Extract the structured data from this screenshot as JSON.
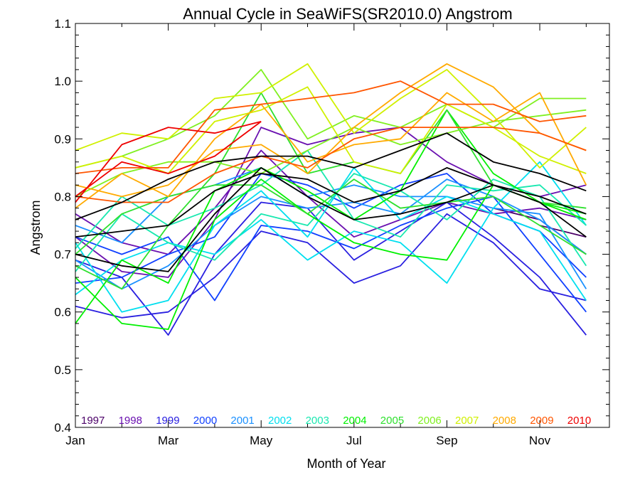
{
  "chart_data": {
    "type": "line",
    "title": "Annual Cycle in SeaWiFS(SR2010.0) Angstrom",
    "xlabel": "Month of Year",
    "ylabel": "Angstrom",
    "xlim": [
      1,
      12.5
    ],
    "ylim": [
      0.4,
      1.1
    ],
    "x": [
      1,
      2,
      3,
      4,
      5,
      6,
      7,
      8,
      9,
      10,
      11,
      12
    ],
    "x_ticks": [
      {
        "value": 1,
        "label": "Jan"
      },
      {
        "value": 3,
        "label": "Mar"
      },
      {
        "value": 5,
        "label": "May"
      },
      {
        "value": 7,
        "label": "Jul"
      },
      {
        "value": 9,
        "label": "Sep"
      },
      {
        "value": 11,
        "label": "Nov"
      }
    ],
    "y_ticks": [
      {
        "value": 0.4,
        "label": "0.4"
      },
      {
        "value": 0.5,
        "label": "0.5"
      },
      {
        "value": 0.6,
        "label": "0.6"
      },
      {
        "value": 0.7,
        "label": "0.7"
      },
      {
        "value": 0.8,
        "label": "0.8"
      },
      {
        "value": 0.9,
        "label": "0.9"
      },
      {
        "value": 1.0,
        "label": "1.0"
      },
      {
        "value": 1.1,
        "label": "1.1"
      }
    ],
    "legend_placement": "bottom inside plot",
    "series": [
      {
        "name": "1997",
        "color": "#4b0068",
        "values": [
          null,
          null,
          null,
          null,
          null,
          null,
          null,
          null,
          null,
          null,
          0.75,
          0.73
        ]
      },
      {
        "name": "1997",
        "color": "#4b0068",
        "values": [
          null,
          null,
          null,
          null,
          null,
          null,
          null,
          null,
          null,
          0.78,
          0.76,
          0.7
        ]
      },
      {
        "name": "1998",
        "color": "#6a10b0",
        "values": [
          0.77,
          0.72,
          0.7,
          0.78,
          0.88,
          0.8,
          0.73,
          0.76,
          0.79,
          0.77,
          0.78,
          0.76
        ]
      },
      {
        "name": "1998",
        "color": "#6a10b0",
        "values": [
          0.73,
          0.67,
          0.66,
          0.76,
          0.92,
          0.89,
          0.91,
          0.92,
          0.86,
          0.82,
          0.8,
          0.82
        ]
      },
      {
        "name": "1999",
        "color": "#2a20e0",
        "values": [
          0.69,
          0.66,
          0.56,
          0.7,
          0.79,
          0.78,
          0.69,
          0.74,
          0.79,
          0.73,
          0.66,
          0.56
        ]
      },
      {
        "name": "1999",
        "color": "#2a20e0",
        "values": [
          0.61,
          0.59,
          0.6,
          0.66,
          0.74,
          0.72,
          0.65,
          0.68,
          0.77,
          0.72,
          0.64,
          0.62
        ]
      },
      {
        "name": "2000",
        "color": "#1040ff",
        "values": [
          0.73,
          0.7,
          0.73,
          0.62,
          0.75,
          0.74,
          0.71,
          0.75,
          0.78,
          0.8,
          0.7,
          0.6
        ]
      },
      {
        "name": "2000",
        "color": "#1040ff",
        "values": [
          0.65,
          0.66,
          0.7,
          0.73,
          0.84,
          0.82,
          0.78,
          0.82,
          0.84,
          0.77,
          0.74,
          0.66
        ]
      },
      {
        "name": "2001",
        "color": "#1a90ff",
        "values": [
          0.75,
          0.72,
          0.8,
          0.82,
          0.85,
          0.8,
          0.82,
          0.8,
          0.8,
          0.78,
          0.77,
          0.64
        ]
      },
      {
        "name": "2001",
        "color": "#1a90ff",
        "values": [
          0.69,
          0.64,
          0.68,
          0.75,
          0.8,
          0.78,
          0.79,
          0.77,
          0.83,
          0.8,
          0.76,
          0.7
        ]
      },
      {
        "name": "2002",
        "color": "#00dfef",
        "values": [
          0.63,
          0.69,
          0.72,
          0.7,
          0.76,
          0.69,
          0.74,
          0.72,
          0.65,
          0.78,
          0.86,
          0.75
        ]
      },
      {
        "name": "2002",
        "color": "#00dfef",
        "values": [
          0.72,
          0.6,
          0.62,
          0.75,
          0.81,
          0.73,
          0.85,
          0.76,
          0.8,
          0.77,
          0.74,
          0.62
        ]
      },
      {
        "name": "2003",
        "color": "#19e8b0",
        "values": [
          0.71,
          0.8,
          0.75,
          0.78,
          0.82,
          0.88,
          0.76,
          0.73,
          0.82,
          0.81,
          0.82,
          0.75
        ]
      },
      {
        "name": "2003",
        "color": "#19e8b0",
        "values": [
          0.67,
          0.77,
          0.72,
          0.69,
          0.77,
          0.75,
          0.84,
          0.81,
          0.76,
          0.83,
          0.8,
          0.68
        ]
      },
      {
        "name": "2004",
        "color": "#00f000",
        "values": [
          0.66,
          0.58,
          0.57,
          0.76,
          0.83,
          0.77,
          0.72,
          0.7,
          0.69,
          0.82,
          0.79,
          0.76
        ]
      },
      {
        "name": "2004",
        "color": "#00f000",
        "values": [
          0.58,
          0.69,
          0.65,
          0.81,
          0.85,
          0.81,
          0.76,
          0.81,
          0.95,
          0.84,
          0.79,
          0.77
        ]
      },
      {
        "name": "2005",
        "color": "#2ee02e",
        "values": [
          0.7,
          0.77,
          0.8,
          0.82,
          0.82,
          0.77,
          0.83,
          0.78,
          0.79,
          0.8,
          0.75,
          0.7
        ]
      },
      {
        "name": "2005",
        "color": "#2ee02e",
        "values": [
          0.68,
          0.64,
          0.75,
          0.84,
          0.98,
          0.84,
          0.86,
          0.84,
          0.95,
          0.82,
          0.79,
          0.78
        ]
      },
      {
        "name": "2006",
        "color": "#80f020",
        "values": [
          0.85,
          0.87,
          0.9,
          0.94,
          1.02,
          0.9,
          0.94,
          0.92,
          0.96,
          0.92,
          0.97,
          0.97
        ]
      },
      {
        "name": "2006",
        "color": "#80f020",
        "values": [
          0.8,
          0.84,
          0.86,
          0.86,
          0.84,
          0.88,
          0.92,
          0.89,
          0.91,
          0.93,
          0.94,
          0.95
        ]
      },
      {
        "name": "2007",
        "color": "#d0f000",
        "values": [
          0.88,
          0.91,
          0.9,
          0.97,
          0.98,
          1.03,
          0.91,
          0.97,
          1.02,
          0.94,
          0.85,
          0.92
        ]
      },
      {
        "name": "2007",
        "color": "#d0f000",
        "values": [
          0.85,
          0.87,
          0.84,
          0.93,
          0.95,
          0.99,
          0.86,
          0.84,
          0.96,
          0.92,
          0.87,
          0.84
        ]
      },
      {
        "name": "2008",
        "color": "#ffaa00",
        "values": [
          0.82,
          0.8,
          0.82,
          0.88,
          0.89,
          0.84,
          0.92,
          0.98,
          1.03,
          0.99,
          0.91,
          0.88
        ]
      },
      {
        "name": "2008",
        "color": "#ffaa00",
        "values": [
          0.78,
          0.84,
          0.8,
          0.9,
          0.96,
          0.86,
          0.89,
          0.9,
          0.98,
          0.93,
          0.98,
          0.82
        ]
      },
      {
        "name": "2009",
        "color": "#ff5500",
        "values": [
          0.84,
          0.85,
          0.85,
          0.95,
          0.96,
          0.97,
          0.98,
          1.0,
          0.96,
          0.96,
          0.93,
          0.94
        ]
      },
      {
        "name": "2009",
        "color": "#ff5500",
        "values": [
          0.8,
          0.79,
          0.79,
          0.84,
          0.87,
          0.85,
          0.9,
          0.92,
          0.92,
          0.92,
          0.91,
          0.88
        ]
      },
      {
        "name": "2010",
        "color": "#ee0000",
        "values": [
          0.79,
          0.89,
          0.92,
          0.91,
          0.93,
          null,
          null,
          null,
          null,
          null,
          null,
          null
        ]
      },
      {
        "name": "2010",
        "color": "#ee0000",
        "values": [
          0.8,
          0.86,
          0.84,
          0.87,
          0.93,
          null,
          null,
          null,
          null,
          null,
          null,
          null
        ]
      },
      {
        "color": "#000000",
        "values": [
          0.76,
          0.79,
          0.83,
          0.86,
          0.87,
          0.87,
          0.85,
          0.88,
          0.91,
          0.86,
          0.84,
          0.81
        ]
      },
      {
        "color": "#000000",
        "values": [
          0.73,
          0.74,
          0.75,
          0.81,
          0.84,
          0.83,
          0.79,
          0.81,
          0.85,
          0.82,
          0.8,
          0.77
        ]
      },
      {
        "color": "#000000",
        "values": [
          0.7,
          0.68,
          0.67,
          0.77,
          0.85,
          0.8,
          0.76,
          0.77,
          0.79,
          0.82,
          0.79,
          0.73
        ]
      }
    ],
    "legend": [
      {
        "label": "1997",
        "color": "#4b0068"
      },
      {
        "label": "1998",
        "color": "#6a10b0"
      },
      {
        "label": "1999",
        "color": "#2a20e0"
      },
      {
        "label": "2000",
        "color": "#1040ff"
      },
      {
        "label": "2001",
        "color": "#1a90ff"
      },
      {
        "label": "2002",
        "color": "#00dfef"
      },
      {
        "label": "2003",
        "color": "#19e8b0"
      },
      {
        "label": "2004",
        "color": "#00f000"
      },
      {
        "label": "2005",
        "color": "#2ee02e"
      },
      {
        "label": "2006",
        "color": "#80f020"
      },
      {
        "label": "2007",
        "color": "#d0f000"
      },
      {
        "label": "2008",
        "color": "#ffaa00"
      },
      {
        "label": "2009",
        "color": "#ff5500"
      },
      {
        "label": "2010",
        "color": "#ee0000"
      }
    ]
  }
}
